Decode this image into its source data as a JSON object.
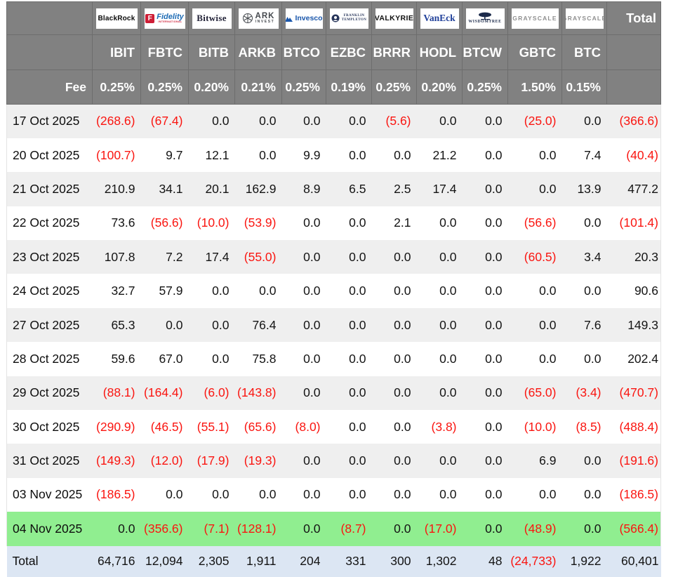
{
  "header": {
    "fee_label": "Fee",
    "total_label": "Total"
  },
  "logos": {
    "order": [
      "blackrock",
      "fidelity",
      "bitwise",
      "ark",
      "invesco",
      "franklin",
      "valkyrie",
      "vaneck",
      "wisdomtree",
      "grayscale",
      "grayscale"
    ],
    "blackrock": {
      "text": "BlackRock"
    },
    "fidelity": {
      "icon": "F",
      "text": "Fidelity",
      "sub": "INTERNATIONAL"
    },
    "bitwise": {
      "text": "Bitwise"
    },
    "ark": {
      "main": "ARK",
      "sub": "INVEST"
    },
    "invesco": {
      "text": "Invesco"
    },
    "franklin": {
      "line1": "FRANKLIN",
      "line2": "TEMPLETON"
    },
    "valkyrie": {
      "text": "VALKYRIE"
    },
    "vaneck": {
      "text": "VanEck"
    },
    "wisdomtree": {
      "text": "WISDOMTREE"
    },
    "grayscale": {
      "text": "GRAYSCALE"
    }
  },
  "colors": {
    "header_bg": "#818181",
    "header_border": "#6d6d6d",
    "row_shade": "#efefef",
    "row_plain": "#ffffff",
    "highlight_green": "#90ee90",
    "total_row_bg": "#dce6f3",
    "negative_red": "#fa1510"
  },
  "chart_data": {
    "type": "table",
    "providers": [
      "BlackRock",
      "Fidelity",
      "Bitwise",
      "ARK Invest",
      "Invesco",
      "Franklin Templeton",
      "Valkyrie",
      "VanEck",
      "WisdomTree",
      "Grayscale",
      "Grayscale"
    ],
    "tickers": [
      "IBIT",
      "FBTC",
      "BITB",
      "ARKB",
      "BTCO",
      "EZBC",
      "BRRR",
      "HODL",
      "BTCW",
      "GBTC",
      "BTC"
    ],
    "fees": [
      "0.25%",
      "0.25%",
      "0.20%",
      "0.21%",
      "0.25%",
      "0.19%",
      "0.25%",
      "0.20%",
      "0.25%",
      "1.50%",
      "0.15%"
    ],
    "rows": [
      {
        "date": "17 Oct 2025",
        "values": [
          -268.6,
          -67.4,
          0,
          0,
          0,
          0,
          -5.6,
          0,
          0,
          -25.0,
          0
        ],
        "total": -366.6,
        "highlight": false
      },
      {
        "date": "20 Oct 2025",
        "values": [
          -100.7,
          9.7,
          12.1,
          0,
          9.9,
          0,
          0,
          21.2,
          0,
          0,
          7.4
        ],
        "total": -40.4,
        "highlight": false
      },
      {
        "date": "21 Oct 2025",
        "values": [
          210.9,
          34.1,
          20.1,
          162.9,
          8.9,
          6.5,
          2.5,
          17.4,
          0,
          0,
          13.9
        ],
        "total": 477.2,
        "highlight": false
      },
      {
        "date": "22 Oct 2025",
        "values": [
          73.6,
          -56.6,
          -10.0,
          -53.9,
          0,
          0,
          2.1,
          0,
          0,
          -56.6,
          0
        ],
        "total": -101.4,
        "highlight": false
      },
      {
        "date": "23 Oct 2025",
        "values": [
          107.8,
          7.2,
          17.4,
          -55.0,
          0,
          0,
          0,
          0,
          0,
          -60.5,
          3.4
        ],
        "total": 20.3,
        "highlight": false
      },
      {
        "date": "24 Oct 2025",
        "values": [
          32.7,
          57.9,
          0,
          0,
          0,
          0,
          0,
          0,
          0,
          0,
          0
        ],
        "total": 90.6,
        "highlight": false
      },
      {
        "date": "27 Oct 2025",
        "values": [
          65.3,
          0,
          0,
          76.4,
          0,
          0,
          0,
          0,
          0,
          0,
          7.6
        ],
        "total": 149.3,
        "highlight": false
      },
      {
        "date": "28 Oct 2025",
        "values": [
          59.6,
          67.0,
          0,
          75.8,
          0,
          0,
          0,
          0,
          0,
          0,
          0
        ],
        "total": 202.4,
        "highlight": false
      },
      {
        "date": "29 Oct 2025",
        "values": [
          -88.1,
          -164.4,
          -6.0,
          -143.8,
          0,
          0,
          0,
          0,
          0,
          -65.0,
          -3.4
        ],
        "total": -470.7,
        "highlight": false
      },
      {
        "date": "30 Oct 2025",
        "values": [
          -290.9,
          -46.5,
          -55.1,
          -65.6,
          -8.0,
          0,
          0,
          -3.8,
          0,
          -10.0,
          -8.5
        ],
        "total": -488.4,
        "highlight": false
      },
      {
        "date": "31 Oct 2025",
        "values": [
          -149.3,
          -12.0,
          -17.9,
          -19.3,
          0,
          0,
          0,
          0,
          0,
          6.9,
          0
        ],
        "total": -191.6,
        "highlight": false
      },
      {
        "date": "03 Nov 2025",
        "values": [
          -186.5,
          0,
          0,
          0,
          0,
          0,
          0,
          0,
          0,
          0,
          0
        ],
        "total": -186.5,
        "highlight": false
      },
      {
        "date": "04 Nov 2025",
        "values": [
          0,
          -356.6,
          -7.1,
          -128.1,
          0,
          -8.7,
          0,
          -17.0,
          0,
          -48.9,
          0
        ],
        "total": -566.4,
        "highlight": true
      }
    ],
    "total_row": {
      "label": "Total",
      "values": [
        64716,
        12094,
        2305,
        1911,
        204,
        331,
        300,
        1302,
        48,
        -24733,
        1922
      ],
      "total": 60401
    }
  }
}
